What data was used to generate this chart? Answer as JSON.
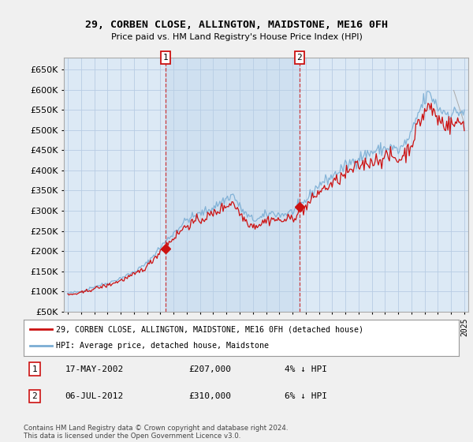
{
  "title": "29, CORBEN CLOSE, ALLINGTON, MAIDSTONE, ME16 0FH",
  "subtitle": "Price paid vs. HM Land Registry's House Price Index (HPI)",
  "legend_line1": "29, CORBEN CLOSE, ALLINGTON, MAIDSTONE, ME16 0FH (detached house)",
  "legend_line2": "HPI: Average price, detached house, Maidstone",
  "annotation1_label": "1",
  "annotation1_date": "17-MAY-2002",
  "annotation1_price": "£207,000",
  "annotation1_hpi": "4% ↓ HPI",
  "annotation2_label": "2",
  "annotation2_date": "06-JUL-2012",
  "annotation2_price": "£310,000",
  "annotation2_hpi": "6% ↓ HPI",
  "footer": "Contains HM Land Registry data © Crown copyright and database right 2024.\nThis data is licensed under the Open Government Licence v3.0.",
  "hpi_color": "#7aadd4",
  "price_color": "#cc1111",
  "background_color": "#f0f0f0",
  "plot_bg_color": "#dce9f5",
  "shade_color": "#c5d8ef",
  "ylim": [
    50000,
    680000
  ],
  "yticks": [
    50000,
    100000,
    150000,
    200000,
    250000,
    300000,
    350000,
    400000,
    450000,
    500000,
    550000,
    600000,
    650000
  ],
  "xstart": 1995,
  "xend": 2025,
  "sale1_year": 2002.38,
  "sale1_price": 207000,
  "sale2_year": 2012.52,
  "sale2_price": 310000
}
